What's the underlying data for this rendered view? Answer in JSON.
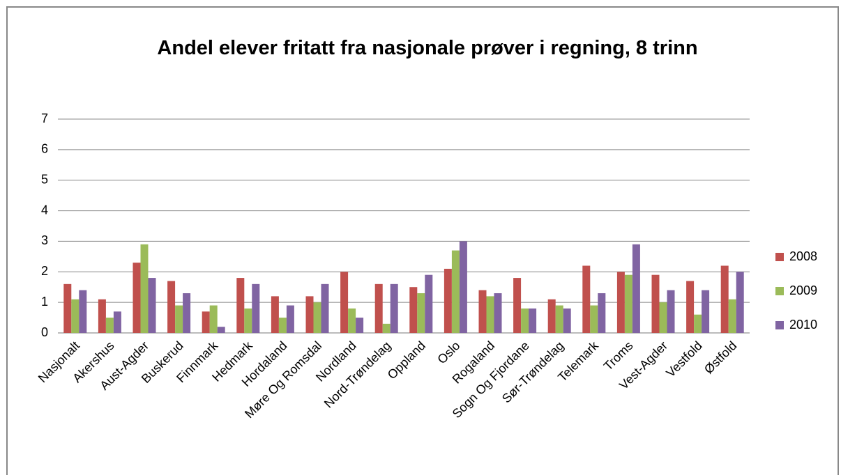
{
  "chart_data": {
    "type": "bar",
    "title": "Andel elever fritatt fra nasjonale prøver i regning, 8 trinn",
    "categories": [
      "Nasjonalt",
      "Akershus",
      "Aust-Agder",
      "Buskerud",
      "Finnmark",
      "Hedmark",
      "Hordaland",
      "Møre Og Romsdal",
      "Nordland",
      "Nord-Trøndelag",
      "Oppland",
      "Oslo",
      "Rogaland",
      "Sogn Og Fjordane",
      "Sør-Trøndelag",
      "Telemark",
      "Troms",
      "Vest-Agder",
      "Vestfold",
      "Østfold"
    ],
    "series": [
      {
        "name": "2008",
        "color": "#c0504d",
        "values": [
          1.6,
          1.1,
          2.3,
          1.7,
          0.7,
          1.8,
          1.2,
          1.2,
          2.0,
          1.6,
          1.5,
          2.1,
          1.4,
          1.8,
          1.1,
          2.2,
          2.0,
          1.9,
          1.7,
          2.2
        ]
      },
      {
        "name": "2009",
        "color": "#9bbb59",
        "values": [
          1.1,
          0.5,
          2.9,
          0.9,
          0.9,
          0.8,
          0.5,
          1.0,
          0.8,
          0.3,
          1.3,
          2.7,
          1.2,
          0.8,
          0.9,
          0.9,
          1.9,
          1.0,
          0.6,
          1.1
        ]
      },
      {
        "name": "2010",
        "color": "#8064a2",
        "values": [
          1.4,
          0.7,
          1.8,
          1.3,
          0.2,
          1.6,
          0.9,
          1.6,
          0.5,
          1.6,
          1.9,
          3.0,
          1.3,
          0.8,
          0.8,
          1.3,
          2.9,
          1.4,
          1.4,
          2.0
        ]
      }
    ],
    "ylim": [
      0,
      7
    ],
    "yticks": [
      0,
      1,
      2,
      3,
      4,
      5,
      6,
      7
    ],
    "grid": true,
    "legend": "right"
  }
}
